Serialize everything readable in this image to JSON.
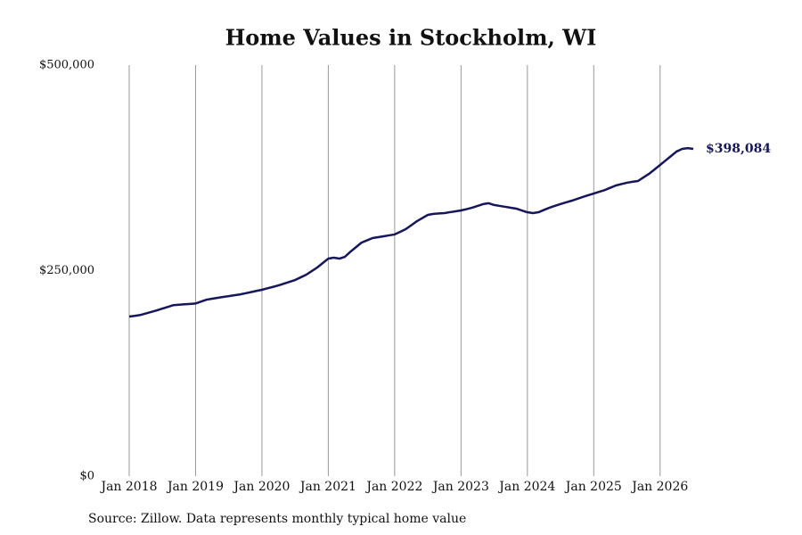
{
  "chart_data": {
    "type": "line",
    "title": "Home Values in Stockholm, WI",
    "source": "Source: Zillow. Data represents monthly typical home value",
    "x": [
      "2018-01",
      "2018-02",
      "2018-03",
      "2018-04",
      "2018-05",
      "2018-06",
      "2018-07",
      "2018-08",
      "2018-09",
      "2018-10",
      "2018-11",
      "2018-12",
      "2019-01",
      "2019-02",
      "2019-03",
      "2019-04",
      "2019-05",
      "2019-06",
      "2019-07",
      "2019-08",
      "2019-09",
      "2019-10",
      "2019-11",
      "2019-12",
      "2020-01",
      "2020-02",
      "2020-03",
      "2020-04",
      "2020-05",
      "2020-06",
      "2020-07",
      "2020-08",
      "2020-09",
      "2020-10",
      "2020-11",
      "2020-12",
      "2021-01",
      "2021-02",
      "2021-03",
      "2021-04",
      "2021-05",
      "2021-06",
      "2021-07",
      "2021-08",
      "2021-09",
      "2021-10",
      "2021-11",
      "2021-12",
      "2022-01",
      "2022-02",
      "2022-03",
      "2022-04",
      "2022-05",
      "2022-06",
      "2022-07",
      "2022-08",
      "2022-09",
      "2022-10",
      "2022-11",
      "2022-12",
      "2023-01",
      "2023-02",
      "2023-03",
      "2023-04",
      "2023-05",
      "2023-06",
      "2023-07",
      "2023-08",
      "2023-09",
      "2023-10",
      "2023-11",
      "2023-12",
      "2024-01",
      "2024-02",
      "2024-03",
      "2024-04",
      "2024-05",
      "2024-06",
      "2024-07",
      "2024-08",
      "2024-09",
      "2024-10",
      "2024-11",
      "2024-12",
      "2025-01",
      "2025-02",
      "2025-03",
      "2025-04",
      "2025-05",
      "2025-06",
      "2025-07",
      "2025-08",
      "2025-09",
      "2025-10",
      "2025-11",
      "2025-12",
      "2026-01",
      "2026-02",
      "2026-03",
      "2026-04",
      "2026-05",
      "2026-06",
      "2026-07"
    ],
    "series": [
      {
        "name": "Typical home value",
        "color": "#16165c",
        "values": [
          194100,
          195000,
          196000,
          197900,
          199800,
          201700,
          203800,
          205900,
          208000,
          208500,
          209000,
          209500,
          210000,
          212400,
          214700,
          215800,
          216900,
          218000,
          219000,
          220000,
          221000,
          222400,
          223800,
          225300,
          226700,
          228500,
          230200,
          232000,
          234200,
          236400,
          238600,
          241800,
          245000,
          249400,
          253800,
          259200,
          264600,
          265700,
          264600,
          266800,
          273000,
          278500,
          284000,
          286800,
          289600,
          290700,
          291800,
          292900,
          294000,
          297200,
          300400,
          305200,
          310000,
          313900,
          317800,
          319000,
          319500,
          320000,
          321100,
          322100,
          323200,
          324800,
          326500,
          328700,
          330900,
          332000,
          329800,
          328700,
          327600,
          326500,
          325400,
          323200,
          321000,
          320000,
          321000,
          323800,
          326500,
          328800,
          331000,
          333000,
          335000,
          337300,
          339500,
          341700,
          343800,
          345900,
          348000,
          350800,
          353600,
          355300,
          356900,
          358000,
          359000,
          363400,
          367700,
          373100,
          378500,
          384000,
          389500,
          395000,
          398000,
          399000,
          398084
        ]
      }
    ],
    "end_label": "$398,084",
    "xlim": [
      "2018-01",
      "2026-07"
    ],
    "xticks": [
      {
        "value": "2018-01",
        "label": "Jan 2018"
      },
      {
        "value": "2019-01",
        "label": "Jan 2019"
      },
      {
        "value": "2020-01",
        "label": "Jan 2020"
      },
      {
        "value": "2021-01",
        "label": "Jan 2021"
      },
      {
        "value": "2022-01",
        "label": "Jan 2022"
      },
      {
        "value": "2023-01",
        "label": "Jan 2023"
      },
      {
        "value": "2024-01",
        "label": "Jan 2024"
      },
      {
        "value": "2025-01",
        "label": "Jan 2025"
      },
      {
        "value": "2026-01",
        "label": "Jan 2026"
      }
    ],
    "ylim": [
      0,
      500000
    ],
    "yticks": [
      {
        "value": 0,
        "label": "$0"
      },
      {
        "value": 250000,
        "label": "$250,000"
      },
      {
        "value": 500000,
        "label": "$500,000"
      }
    ],
    "xgrid": true
  }
}
